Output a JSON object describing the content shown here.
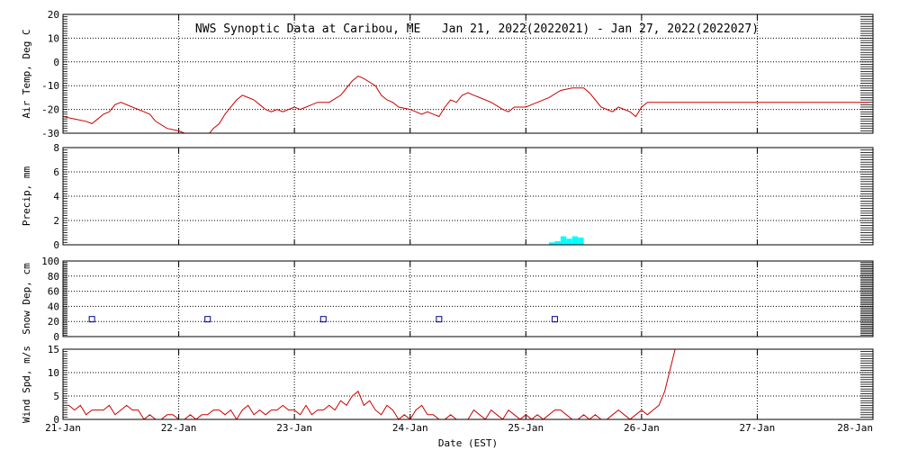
{
  "title": "NWS Synoptic Data at Caribou, ME   Jan 21, 2022(2022021) - Jan 27, 2022(2022027)",
  "xlabel": "Date (EST)",
  "x_ticks": [
    "21-Jan",
    "22-Jan",
    "23-Jan",
    "24-Jan",
    "25-Jan",
    "26-Jan",
    "27-Jan",
    "28-Jan"
  ],
  "colors": {
    "temp": "#cc0000",
    "precip": "#00ffff",
    "snow": "#000099",
    "wind": "#cc0000",
    "axes": "#000000"
  },
  "chart_data": [
    {
      "type": "line",
      "ylabel": "Air Temp, Deg C",
      "ylim": [
        -30,
        20
      ],
      "yticks": [
        -30,
        -20,
        -10,
        0,
        10,
        20
      ],
      "xlim": [
        0,
        7
      ],
      "grid": true,
      "series": [
        {
          "x": [
            0,
            0.1,
            0.2,
            0.25,
            0.3,
            0.35,
            0.4,
            0.45,
            0.5,
            0.6,
            0.7,
            0.75,
            0.8,
            0.9,
            1.0,
            1.05,
            1.1,
            1.2,
            1.25,
            1.3,
            1.35,
            1.4,
            1.5,
            1.55,
            1.6,
            1.65,
            1.7,
            1.75,
            1.8,
            1.85,
            1.9,
            1.95,
            2.0,
            2.05,
            2.1,
            2.15,
            2.2,
            2.3,
            2.4,
            2.5,
            2.55,
            2.6,
            2.7,
            2.75,
            2.8,
            2.85,
            2.9,
            3.0,
            3.05,
            3.1,
            3.15,
            3.2,
            3.25,
            3.3,
            3.35,
            3.4,
            3.45,
            3.5,
            3.55,
            3.6,
            3.7,
            3.8,
            3.85,
            3.9,
            4.0,
            4.05,
            4.1,
            4.2,
            4.3,
            4.4,
            4.5,
            4.55,
            4.6,
            4.65,
            4.7,
            4.75,
            4.8,
            4.85,
            4.9,
            4.95,
            5.0,
            5.05,
            5.1,
            5.2,
            5.3,
            5.4,
            5.5,
            5.6,
            5.7,
            5.8,
            5.9,
            6.0,
            6.1,
            6.2,
            6.3,
            6.4,
            6.5,
            6.6,
            6.7,
            6.8,
            6.9,
            6.97
          ],
          "y": [
            -23,
            -24,
            -25,
            -26,
            -24,
            -22,
            -21,
            -18,
            -17,
            -19,
            -21,
            -22,
            -25,
            -28,
            -29,
            -30,
            -31,
            -32,
            -31,
            -28,
            -26,
            -22,
            -16,
            -14,
            -15,
            -16,
            -18,
            -20,
            -21,
            -20,
            -21,
            -20,
            -19,
            -20,
            -19,
            -18,
            -17,
            -17,
            -14,
            -8,
            -6,
            -7,
            -10,
            -14,
            -16,
            -17,
            -19,
            -20,
            -21,
            -22,
            -21,
            -22,
            -23,
            -19,
            -16,
            -17,
            -14,
            -13,
            -14,
            -15,
            -17,
            -20,
            -21,
            -19,
            -19,
            -18,
            -17,
            -15,
            -12,
            -11,
            -11,
            -13,
            -16,
            -19,
            -20,
            -21,
            -19,
            -20,
            -21,
            -23,
            -19,
            -17,
            -17,
            -17,
            -17,
            -17,
            -17,
            -17,
            -17,
            -17,
            -17,
            -17,
            -17,
            -17,
            -17,
            -17,
            -17,
            -17,
            -17,
            -17,
            -17,
            -17
          ]
        }
      ]
    },
    {
      "type": "bar",
      "ylabel": "Precip, mm",
      "ylim": [
        0,
        8
      ],
      "yticks": [
        0,
        2,
        4,
        6,
        8
      ],
      "xlim": [
        0,
        7
      ],
      "grid": true,
      "series": [
        {
          "x": [
            4.2,
            4.25,
            4.3,
            4.35,
            4.4,
            4.45
          ],
          "y": [
            0.2,
            0.3,
            0.7,
            0.5,
            0.7,
            0.6
          ]
        }
      ]
    },
    {
      "type": "scatter",
      "ylabel": "Snow Dep, cm",
      "ylim": [
        0,
        100
      ],
      "yticks": [
        0,
        20,
        40,
        60,
        80,
        100
      ],
      "xlim": [
        0,
        7
      ],
      "grid": true,
      "series": [
        {
          "x": [
            0.25,
            1.25,
            2.25,
            3.25,
            4.25
          ],
          "y": [
            23,
            23,
            23,
            23,
            23
          ]
        }
      ]
    },
    {
      "type": "line",
      "ylabel": "Wind Spd, m/s",
      "ylim": [
        0,
        15
      ],
      "yticks": [
        0,
        5,
        10,
        15
      ],
      "xlim": [
        0,
        7
      ],
      "grid": true,
      "series": [
        {
          "x": [
            0,
            0.05,
            0.1,
            0.15,
            0.2,
            0.25,
            0.3,
            0.35,
            0.4,
            0.45,
            0.5,
            0.55,
            0.6,
            0.65,
            0.7,
            0.75,
            0.8,
            0.85,
            0.9,
            0.95,
            1.0,
            1.05,
            1.1,
            1.15,
            1.2,
            1.25,
            1.3,
            1.35,
            1.4,
            1.45,
            1.5,
            1.55,
            1.6,
            1.65,
            1.7,
            1.75,
            1.8,
            1.85,
            1.9,
            1.95,
            2.0,
            2.05,
            2.1,
            2.15,
            2.2,
            2.25,
            2.3,
            2.35,
            2.4,
            2.45,
            2.5,
            2.55,
            2.6,
            2.65,
            2.7,
            2.75,
            2.8,
            2.85,
            2.9,
            2.95,
            3.0,
            3.05,
            3.1,
            3.15,
            3.2,
            3.25,
            3.3,
            3.35,
            3.4,
            3.45,
            3.5,
            3.55,
            3.6,
            3.65,
            3.7,
            3.75,
            3.8,
            3.85,
            3.9,
            3.95,
            4.0,
            4.05,
            4.1,
            4.15,
            4.2,
            4.25,
            4.3,
            4.35,
            4.4,
            4.45,
            4.5,
            4.55,
            4.6,
            4.65,
            4.7,
            4.75,
            4.8,
            4.85,
            4.9,
            4.95,
            5.0,
            5.05,
            5.1,
            5.15,
            5.2,
            5.25,
            5.3
          ],
          "y": [
            3,
            3,
            2,
            3,
            1,
            2,
            2,
            2,
            3,
            1,
            2,
            3,
            2,
            2,
            0,
            1,
            0,
            0,
            1,
            1,
            0,
            0,
            1,
            0,
            1,
            1,
            2,
            2,
            1,
            2,
            0,
            2,
            3,
            1,
            2,
            1,
            2,
            2,
            3,
            2,
            2,
            1,
            3,
            1,
            2,
            2,
            3,
            2,
            4,
            3,
            5,
            6,
            3,
            4,
            2,
            1,
            3,
            2,
            0,
            1,
            0,
            2,
            3,
            1,
            1,
            0,
            0,
            1,
            0,
            0,
            0,
            2,
            1,
            0,
            2,
            1,
            0,
            2,
            1,
            0,
            1,
            0,
            1,
            0,
            1,
            2,
            2,
            1,
            0,
            0,
            1,
            0,
            1,
            0,
            0,
            1,
            2,
            1,
            0,
            1,
            2,
            1,
            2,
            3,
            6,
            11,
            16
          ]
        }
      ]
    }
  ]
}
